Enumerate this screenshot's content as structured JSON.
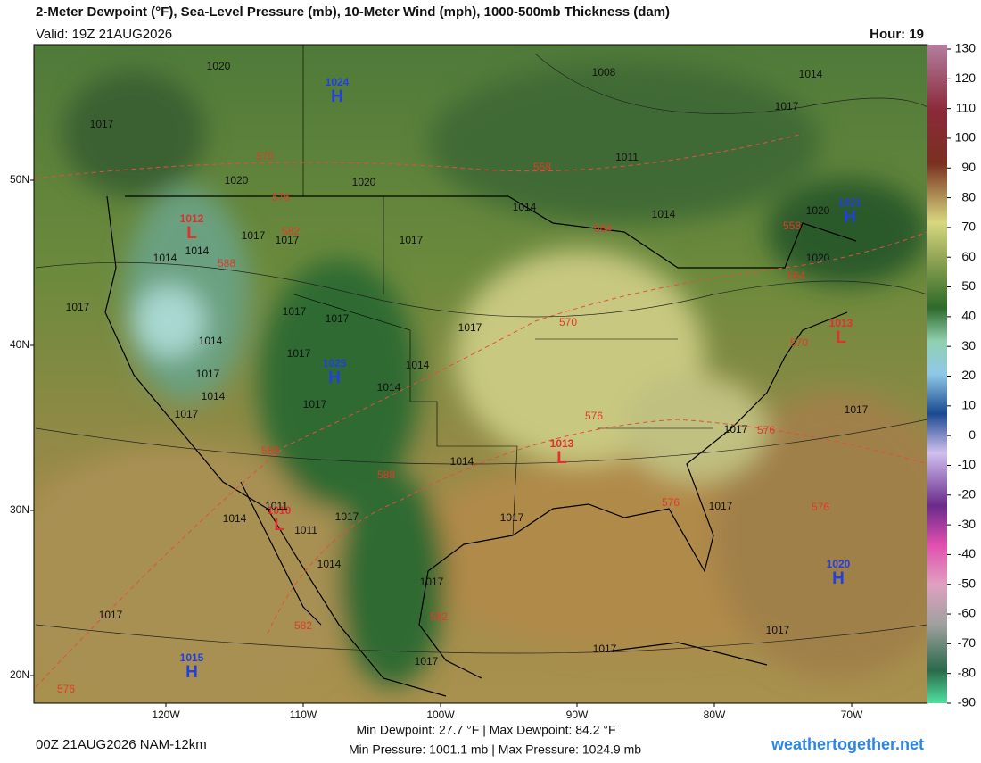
{
  "header": {
    "title": "2-Meter Dewpoint (°F), Sea-Level Pressure (mb), 10-Meter Wind (mph), 1000-500mb Thickness (dam)",
    "valid": "Valid: 19Z 21AUG2026",
    "hour": "Hour: 19"
  },
  "colorbar": {
    "ticks": [
      130,
      120,
      110,
      100,
      90,
      80,
      70,
      60,
      50,
      40,
      30,
      20,
      10,
      0,
      -10,
      -20,
      -30,
      -40,
      -50,
      -60,
      -70,
      -80,
      -90
    ]
  },
  "axes": {
    "lat_labels": [
      "50N",
      "40N",
      "30N",
      "20N"
    ],
    "lon_labels": [
      "120W",
      "110W",
      "100W",
      "90W",
      "80W",
      "70W"
    ]
  },
  "pressure_centers": [
    {
      "letter": "H",
      "value": "1024"
    },
    {
      "letter": "L",
      "value": "1012"
    },
    {
      "letter": "H",
      "value": "1025"
    },
    {
      "letter": "L",
      "value": "1013"
    },
    {
      "letter": "L",
      "value": "1013"
    },
    {
      "letter": "H",
      "value": "1021"
    },
    {
      "letter": "L",
      "value": "1010"
    },
    {
      "letter": "H",
      "value": "1020"
    },
    {
      "letter": "H",
      "value": "1015"
    }
  ],
  "thickness_labels": [
    "570",
    "558",
    "576",
    "582",
    "588",
    "570",
    "564",
    "558",
    "564",
    "570",
    "576",
    "576",
    "588",
    "588",
    "576",
    "576",
    "582",
    "582",
    "576"
  ],
  "isobar_labels": [
    "1020",
    "1008",
    "1014",
    "1017",
    "1011",
    "1020",
    "1017",
    "1020",
    "1014",
    "1014",
    "1020",
    "1020",
    "1017",
    "1017",
    "1017",
    "1014",
    "1014",
    "1017",
    "1017",
    "1017",
    "1017",
    "1014",
    "1017",
    "1014",
    "1014",
    "1017",
    "1014",
    "1017",
    "1017",
    "1017",
    "1017",
    "1014",
    "1011",
    "1011",
    "1014",
    "1017",
    "1014",
    "1017",
    "1017",
    "1017",
    "1017",
    "1017",
    "1017",
    "1017"
  ],
  "footer": {
    "run": "00Z 21AUG2026 NAM-12km",
    "dewpoint": "Min Dewpoint:  27.7 °F | Max Dewpoint:  84.2 °F",
    "pressure": "Min Pressure: 1001.1 mb | Max Pressure: 1024.9 mb",
    "site": "weathertogether.net"
  }
}
